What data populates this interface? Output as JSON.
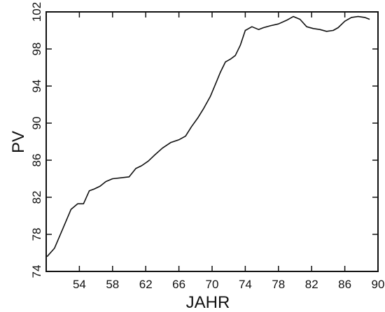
{
  "chart_data": {
    "type": "line",
    "title": "",
    "xlabel": "JAHR",
    "ylabel": "PV",
    "xlim": [
      50,
      90
    ],
    "ylim": [
      74,
      102
    ],
    "xticks": [
      54,
      58,
      62,
      66,
      70,
      74,
      78,
      82,
      86,
      90
    ],
    "yticks": [
      74,
      78,
      82,
      86,
      90,
      94,
      98,
      102
    ],
    "grid": false,
    "legend": "none",
    "series": [
      {
        "color": "#111111",
        "x": [
          50.1,
          51.0,
          52.0,
          53.0,
          53.8,
          54.5,
          55.2,
          55.8,
          56.5,
          57.2,
          58.0,
          59.0,
          60.0,
          60.8,
          61.5,
          62.3,
          63.0,
          64.0,
          65.0,
          66.0,
          66.8,
          67.5,
          68.3,
          69.0,
          69.8,
          70.5,
          71.0,
          71.6,
          72.2,
          72.8,
          73.4,
          74.0,
          74.8,
          75.6,
          76.2,
          77.0,
          78.0,
          79.0,
          79.8,
          80.6,
          81.4,
          82.2,
          83.0,
          83.8,
          84.6,
          85.2,
          86.0,
          86.8,
          87.6,
          88.4,
          89.0
        ],
        "y": [
          75.6,
          76.5,
          78.6,
          80.7,
          81.3,
          81.3,
          82.7,
          82.9,
          83.2,
          83.7,
          84.0,
          84.1,
          84.2,
          85.1,
          85.4,
          85.9,
          86.5,
          87.3,
          87.9,
          88.2,
          88.6,
          89.6,
          90.6,
          91.6,
          92.9,
          94.4,
          95.5,
          96.6,
          96.9,
          97.3,
          98.4,
          100.0,
          100.4,
          100.1,
          100.3,
          100.5,
          100.7,
          101.1,
          101.5,
          101.2,
          100.4,
          100.2,
          100.1,
          99.9,
          100.0,
          100.3,
          101.0,
          101.4,
          101.5,
          101.4,
          101.2
        ]
      }
    ]
  }
}
